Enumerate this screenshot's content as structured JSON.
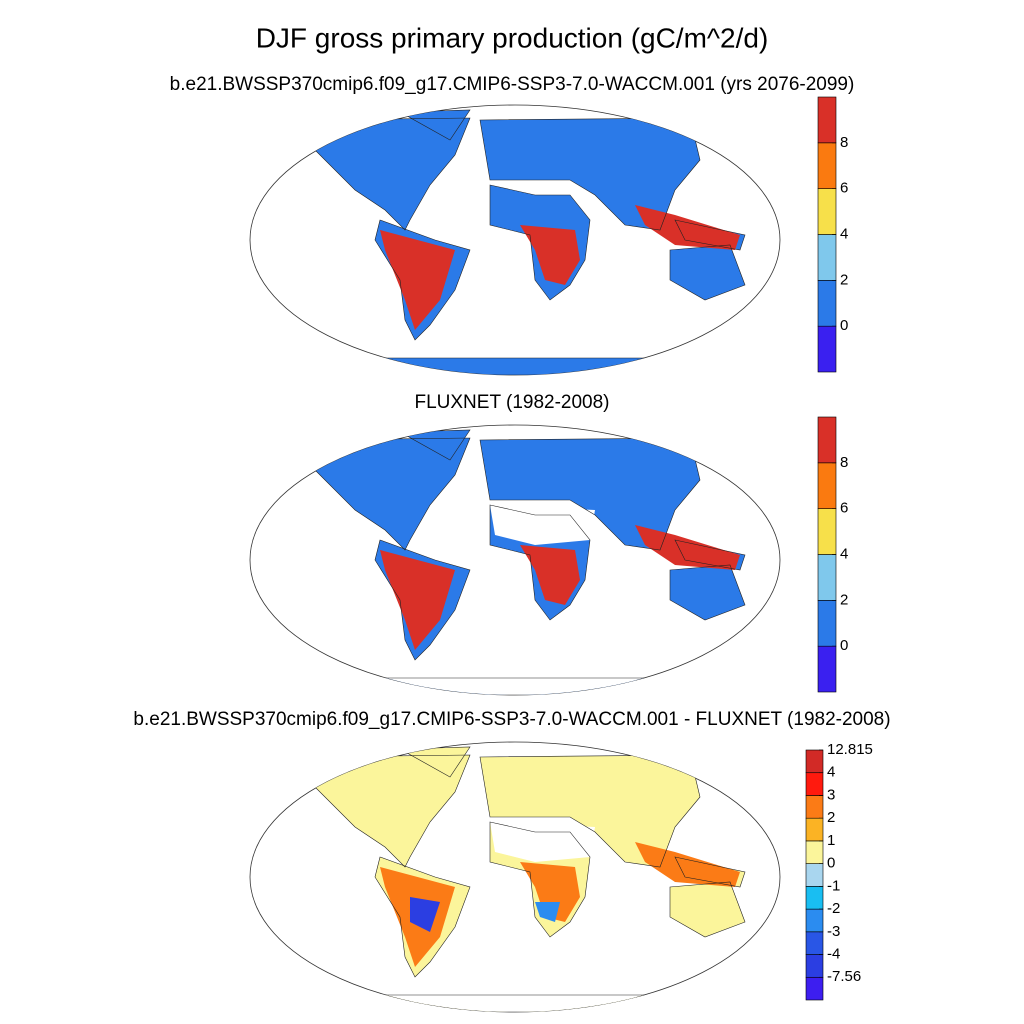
{
  "title": "DJF gross primary production (gC/m^2/d)",
  "panels": [
    {
      "title": "b.e21.BWSSP370cmip6.f09_g17.CMIP6-SSP3-7.0-WACCM.001 (yrs 2076-2099)",
      "colorbar": {
        "colors": [
          "#3a20f0",
          "#2b7ae8",
          "#7fc8ec",
          "#f7e04a",
          "#fa7a10",
          "#d93028"
        ],
        "ticks": [
          0,
          2,
          4,
          6,
          8
        ]
      }
    },
    {
      "title": "FLUXNET (1982-2008)",
      "colorbar": {
        "colors": [
          "#3a20f0",
          "#2b7ae8",
          "#7fc8ec",
          "#f7e04a",
          "#fa7a10",
          "#d93028"
        ],
        "ticks": [
          0,
          2,
          4,
          6,
          8
        ]
      }
    },
    {
      "title": "b.e21.BWSSP370cmip6.f09_g17.CMIP6-SSP3-7.0-WACCM.001 - FLUXNET (1982-2008)",
      "colorbar": {
        "colors": [
          "#3d1ef0",
          "#2b3ee2",
          "#2956e6",
          "#2b8cf0",
          "#19bef2",
          "#a9d6ef",
          "#fbf59b",
          "#fbb324",
          "#fb7b16",
          "#ff1a0e",
          "#d22a26"
        ],
        "ticks": [
          -7.56,
          -4,
          -3,
          -2,
          -1,
          0,
          1,
          2,
          3,
          4,
          12.815
        ]
      }
    }
  ]
}
